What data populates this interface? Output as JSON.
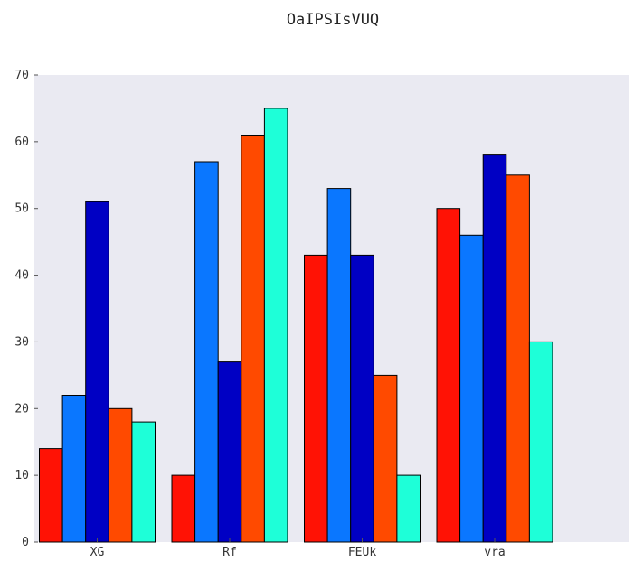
{
  "chart_data": {
    "type": "bar",
    "title": "OaIPSIsVUQ",
    "xlabel": "",
    "ylabel": "",
    "categories": [
      "XG",
      "Rf",
      "FEUk",
      "vra"
    ],
    "ylim": [
      0,
      70
    ],
    "yticks": [
      0,
      10,
      20,
      30,
      40,
      50,
      60,
      70
    ],
    "grid": false,
    "background": "#eaeaf2",
    "series": [
      {
        "color": "#ff1205",
        "values": [
          14,
          10,
          43,
          50
        ]
      },
      {
        "color": "#0a77ff",
        "values": [
          22,
          57,
          53,
          46
        ]
      },
      {
        "color": "#0000c4",
        "values": [
          51,
          27,
          43,
          58
        ]
      },
      {
        "color": "#ff4a00",
        "values": [
          20,
          61,
          25,
          55
        ]
      },
      {
        "color": "#1effd8",
        "values": [
          18,
          65,
          10,
          30
        ]
      }
    ]
  }
}
